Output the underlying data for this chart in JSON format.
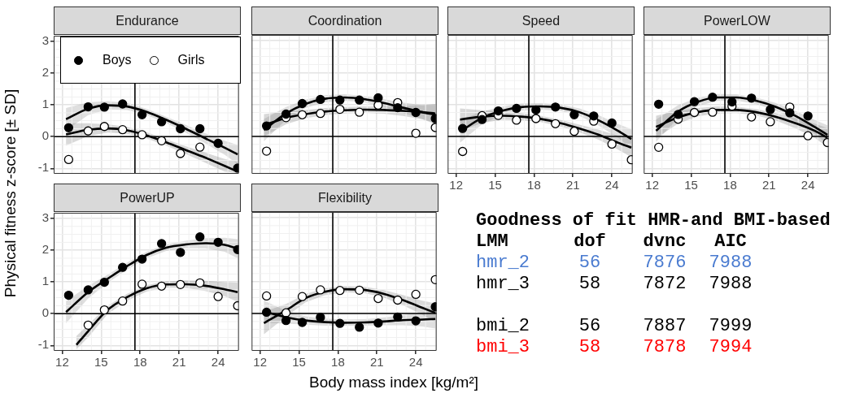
{
  "chart_data": [
    {
      "type": "scatter",
      "title": "Endurance",
      "ylabel": "Physical fitness z-score [± SD]",
      "legend": "top left",
      "tick_labels": "y",
      "grid": true,
      "marker": "circle",
      "x": [
        12.5,
        14,
        15.25,
        16.65,
        18.15,
        19.65,
        21.1,
        22.6,
        24,
        25.5
      ],
      "xlim": [
        11.35,
        25.6
      ],
      "ylim": [
        -1.17,
        3.18
      ],
      "xticks": [
        12,
        {
          "value": 13.5,
          "label": null
        },
        15,
        {
          "value": 16.5,
          "label": null
        },
        18,
        {
          "value": 19.5,
          "label": null
        },
        21,
        {
          "value": 22.5,
          "label": null
        },
        24,
        {
          "value": 25.5,
          "label": null
        }
      ],
      "yticks": [
        -1,
        {
          "value": -0.5,
          "label": null
        },
        0,
        {
          "value": 0.5,
          "label": null
        },
        1,
        {
          "value": 1.5,
          "label": null
        },
        2,
        {
          "value": 2.5,
          "label": null
        },
        3
      ],
      "ref_lines": [
        {
          "axis": "x",
          "value": 17.6,
          "color": "#000000"
        },
        {
          "axis": "y",
          "value": 0,
          "color": "#000000"
        }
      ],
      "series": [
        {
          "name": "Boys",
          "color": "#000000",
          "values": [
            0.28,
            0.94,
            0.93,
            1.03,
            0.69,
            0.47,
            0.25,
            0.25,
            -0.21,
            -0.99
          ]
        },
        {
          "name": "Girls",
          "color": "#ffffff",
          "values": [
            -0.72,
            0.18,
            0.32,
            0.22,
            0.06,
            -0.13,
            -0.53,
            -0.33,
            null,
            null
          ]
        },
        {
          "type": "line",
          "color": "#000000",
          "marker": "none",
          "x": [
            12.3,
            14,
            15.5,
            17,
            18.5,
            20,
            21.5,
            23,
            24.5,
            25.5
          ],
          "values": [
            0.55,
            0.88,
            0.99,
            0.95,
            0.78,
            0.53,
            0.25,
            -0.05,
            -0.35,
            -0.56
          ],
          "lower": [
            0.2,
            0.68,
            0.86,
            0.84,
            0.68,
            0.43,
            0.13,
            -0.21,
            -0.57,
            -0.86
          ],
          "upper": [
            0.9,
            1.08,
            1.12,
            1.06,
            0.88,
            0.63,
            0.37,
            0.11,
            -0.13,
            -0.26
          ]
        },
        {
          "type": "line",
          "color": "#000000",
          "marker": "none",
          "x": [
            12.3,
            14,
            15.5,
            17,
            18.5,
            20,
            21.5,
            23,
            24.5,
            25.5
          ],
          "values": [
            0.07,
            0.22,
            0.26,
            0.2,
            0.04,
            -0.18,
            -0.42,
            -0.66,
            -0.92,
            -1.1
          ],
          "lower": [
            -0.28,
            0.02,
            0.13,
            0.09,
            -0.06,
            -0.28,
            -0.54,
            -0.82,
            -1.1,
            -1.15
          ],
          "upper": [
            0.42,
            0.42,
            0.39,
            0.31,
            0.14,
            -0.08,
            -0.3,
            -0.5,
            -0.7,
            -0.8
          ]
        }
      ]
    },
    {
      "type": "scatter",
      "title": "Coordination",
      "tick_labels": false,
      "grid": true,
      "marker": "circle",
      "x": [
        12.5,
        14,
        15.25,
        16.65,
        18.15,
        19.65,
        21.1,
        22.6,
        24,
        25.5
      ],
      "xlim": [
        11.35,
        25.6
      ],
      "ylim": [
        -1.17,
        3.18
      ],
      "xticks": [
        12,
        {
          "value": 13.5,
          "label": null
        },
        15,
        {
          "value": 16.5,
          "label": null
        },
        18,
        {
          "value": 19.5,
          "label": null
        },
        21,
        {
          "value": 22.5,
          "label": null
        },
        24,
        {
          "value": 25.5,
          "label": null
        }
      ],
      "yticks": [
        -1,
        {
          "value": -0.5,
          "label": null
        },
        0,
        {
          "value": 0.5,
          "label": null
        },
        1,
        {
          "value": 1.5,
          "label": null
        },
        2,
        {
          "value": 2.5,
          "label": null
        },
        3
      ],
      "ref_lines": [
        {
          "axis": "x",
          "value": 17.6,
          "color": "#000000"
        },
        {
          "axis": "y",
          "value": 0,
          "color": "#000000"
        }
      ],
      "series": [
        {
          "color": "#000000",
          "values": [
            0.33,
            0.7,
            1.03,
            1.16,
            1.14,
            1.14,
            1.21,
            0.9,
            0.75,
            0.56
          ]
        },
        {
          "color": "#ffffff",
          "values": [
            -0.46,
            0.59,
            0.68,
            0.72,
            0.85,
            0.76,
            0.98,
            1.06,
            0.1,
            0.28
          ]
        },
        {
          "type": "line",
          "color": "#000000",
          "marker": "none",
          "x": [
            12.3,
            14,
            15.5,
            17,
            18.5,
            20,
            21.5,
            23,
            24.5,
            25.5
          ],
          "values": [
            0.2,
            0.72,
            1.02,
            1.18,
            1.22,
            1.17,
            1.05,
            0.9,
            0.76,
            0.68
          ],
          "lower": [
            -0.15,
            0.52,
            0.89,
            1.07,
            1.12,
            1.07,
            0.93,
            0.74,
            0.54,
            0.38
          ],
          "upper": [
            0.55,
            0.92,
            1.15,
            1.29,
            1.32,
            1.27,
            1.17,
            1.06,
            0.98,
            0.98
          ]
        },
        {
          "type": "line",
          "color": "#000000",
          "marker": "none",
          "x": [
            12.3,
            14,
            15.5,
            17,
            18.5,
            20,
            21.5,
            23,
            24.5,
            25.5
          ],
          "values": [
            0.35,
            0.58,
            0.7,
            0.78,
            0.82,
            0.84,
            0.83,
            0.8,
            0.76,
            0.72
          ],
          "lower": [
            0,
            0.38,
            0.57,
            0.67,
            0.72,
            0.74,
            0.71,
            0.64,
            0.54,
            0.42
          ],
          "upper": [
            0.7,
            0.78,
            0.83,
            0.89,
            0.92,
            0.94,
            0.95,
            0.96,
            0.98,
            1.02
          ]
        }
      ]
    },
    {
      "type": "scatter",
      "title": "Speed",
      "tick_labels": "x",
      "grid": true,
      "marker": "circle",
      "x": [
        12.5,
        14,
        15.25,
        16.65,
        18.15,
        19.65,
        21.1,
        22.6,
        24,
        25.5
      ],
      "xlim": [
        11.35,
        25.6
      ],
      "ylim": [
        -1.17,
        3.18
      ],
      "xticks": [
        12,
        {
          "value": 13.5,
          "label": null
        },
        15,
        {
          "value": 16.5,
          "label": null
        },
        18,
        {
          "value": 19.5,
          "label": null
        },
        21,
        {
          "value": 22.5,
          "label": null
        },
        24,
        {
          "value": 25.5,
          "label": null
        }
      ],
      "yticks": [
        -1,
        {
          "value": -0.5,
          "label": null
        },
        0,
        {
          "value": 0.5,
          "label": null
        },
        1,
        {
          "value": 1.5,
          "label": null
        },
        2,
        {
          "value": 2.5,
          "label": null
        },
        3
      ],
      "ref_lines": [
        {
          "axis": "x",
          "value": 17.6,
          "color": "#000000"
        },
        {
          "axis": "y",
          "value": 0,
          "color": "#000000"
        }
      ],
      "series": [
        {
          "color": "#000000",
          "values": [
            0.25,
            0.53,
            0.8,
            0.88,
            0.83,
            0.92,
            0.68,
            0.64,
            0.42,
            null
          ]
        },
        {
          "color": "#ffffff",
          "values": [
            -0.47,
            0.65,
            0.66,
            0.51,
            0.56,
            0.4,
            0.16,
            0.48,
            -0.24,
            -0.73
          ]
        },
        {
          "type": "line",
          "color": "#000000",
          "marker": "none",
          "x": [
            12.3,
            14,
            15.5,
            17,
            18.5,
            20,
            21.5,
            23,
            24.5,
            25.5
          ],
          "values": [
            0.15,
            0.58,
            0.8,
            0.92,
            0.94,
            0.9,
            0.76,
            0.5,
            0.17,
            -0.08
          ],
          "lower": [
            -0.2,
            0.38,
            0.67,
            0.81,
            0.84,
            0.8,
            0.64,
            0.34,
            -0.05,
            -0.38
          ],
          "upper": [
            0.5,
            0.78,
            0.93,
            1.03,
            1.04,
            1,
            0.88,
            0.66,
            0.39,
            0.22
          ]
        },
        {
          "type": "line",
          "color": "#000000",
          "marker": "none",
          "x": [
            12.3,
            14,
            15.5,
            17,
            18.5,
            20,
            21.5,
            23,
            24.5,
            25.5
          ],
          "values": [
            0.53,
            0.62,
            0.65,
            0.62,
            0.55,
            0.42,
            0.25,
            0.05,
            -0.2,
            -0.35
          ],
          "lower": [
            0.18,
            0.42,
            0.52,
            0.51,
            0.45,
            0.32,
            0.13,
            -0.11,
            -0.42,
            -0.65
          ],
          "upper": [
            0.88,
            0.82,
            0.78,
            0.73,
            0.65,
            0.52,
            0.37,
            0.21,
            0.02,
            -0.05
          ]
        }
      ]
    },
    {
      "type": "scatter",
      "title": "PowerLOW",
      "tick_labels": "x",
      "grid": true,
      "marker": "circle",
      "x": [
        12.5,
        14,
        15.25,
        16.65,
        18.15,
        19.65,
        21.1,
        22.6,
        24,
        25.5
      ],
      "xlim": [
        11.35,
        25.6
      ],
      "ylim": [
        -1.17,
        3.18
      ],
      "xticks": [
        12,
        {
          "value": 13.5,
          "label": null
        },
        15,
        {
          "value": 16.5,
          "label": null
        },
        18,
        {
          "value": 19.5,
          "label": null
        },
        21,
        {
          "value": 22.5,
          "label": null
        },
        24,
        {
          "value": 25.5,
          "label": null
        }
      ],
      "yticks": [
        -1,
        {
          "value": -0.5,
          "label": null
        },
        0,
        {
          "value": 0.5,
          "label": null
        },
        1,
        {
          "value": 1.5,
          "label": null
        },
        2,
        {
          "value": 2.5,
          "label": null
        },
        3
      ],
      "ref_lines": [
        {
          "axis": "x",
          "value": 17.6,
          "color": "#000000"
        },
        {
          "axis": "y",
          "value": 0,
          "color": "#000000"
        }
      ],
      "series": [
        {
          "color": "#000000",
          "values": [
            1.01,
            0.69,
            1.09,
            1.23,
            1.08,
            1.2,
            0.84,
            0.74,
            0.64,
            null
          ]
        },
        {
          "color": "#ffffff",
          "values": [
            -0.34,
            0.54,
            0.75,
            0.76,
            0.95,
            0.61,
            0.46,
            0.92,
            0.02,
            -0.19
          ]
        },
        {
          "type": "line",
          "color": "#000000",
          "marker": "none",
          "x": [
            12.3,
            14,
            15.5,
            17,
            18.5,
            20,
            21.5,
            23,
            24.5,
            25.5
          ],
          "values": [
            0.18,
            0.78,
            1.08,
            1.22,
            1.22,
            1.12,
            0.93,
            0.65,
            0.3,
            0.05
          ],
          "lower": [
            -0.17,
            0.58,
            0.95,
            1.11,
            1.12,
            1.02,
            0.81,
            0.49,
            0.08,
            -0.25
          ],
          "upper": [
            0.53,
            0.98,
            1.21,
            1.33,
            1.32,
            1.22,
            1.05,
            0.81,
            0.52,
            0.35
          ]
        },
        {
          "type": "line",
          "color": "#000000",
          "marker": "none",
          "x": [
            12.3,
            14,
            15.5,
            17,
            18.5,
            20,
            21.5,
            23,
            24.5,
            25.5
          ],
          "values": [
            0.3,
            0.6,
            0.76,
            0.83,
            0.83,
            0.76,
            0.62,
            0.42,
            0.18,
            -0.04
          ],
          "lower": [
            -0.05,
            0.4,
            0.63,
            0.72,
            0.73,
            0.66,
            0.5,
            0.26,
            -0.04,
            -0.34
          ],
          "upper": [
            0.65,
            0.8,
            0.89,
            0.94,
            0.93,
            0.86,
            0.74,
            0.58,
            0.4,
            0.26
          ]
        }
      ]
    },
    {
      "type": "scatter",
      "title": "PowerUP",
      "grid": true,
      "marker": "circle",
      "x": [
        12.5,
        14,
        15.25,
        16.65,
        18.15,
        19.65,
        21.1,
        22.6,
        24,
        25.5
      ],
      "xlim": [
        11.35,
        25.6
      ],
      "ylim": [
        -1.17,
        3.18
      ],
      "xticks": [
        12,
        {
          "value": 13.5,
          "label": null
        },
        15,
        {
          "value": 16.5,
          "label": null
        },
        18,
        {
          "value": 19.5,
          "label": null
        },
        21,
        {
          "value": 22.5,
          "label": null
        },
        24,
        {
          "value": 25.5,
          "label": null
        }
      ],
      "yticks": [
        -1,
        {
          "value": -0.5,
          "label": null
        },
        0,
        {
          "value": 0.5,
          "label": null
        },
        1,
        {
          "value": 1.5,
          "label": null
        },
        2,
        {
          "value": 2.5,
          "label": null
        },
        3
      ],
      "ref_lines": [
        {
          "axis": "x",
          "value": 17.6,
          "color": "#000000"
        },
        {
          "axis": "y",
          "value": 0,
          "color": "#000000"
        }
      ],
      "series": [
        {
          "color": "#000000",
          "values": [
            0.58,
            0.75,
            0.99,
            1.46,
            1.72,
            2.21,
            1.93,
            2.42,
            2.25,
            2.02
          ]
        },
        {
          "color": "#ffffff",
          "values": [
            null,
            -0.36,
            0.12,
            0.4,
            0.93,
            0.87,
            0.92,
            0.97,
            0.54,
            0.25
          ]
        },
        {
          "type": "line",
          "color": "#000000",
          "marker": "none",
          "x": [
            12.3,
            14,
            15.5,
            17,
            18.5,
            20,
            21.5,
            23,
            24.5,
            25.5
          ],
          "values": [
            0.05,
            0.68,
            1.1,
            1.5,
            1.85,
            2.08,
            2.18,
            2.22,
            2.17,
            2.05
          ],
          "lower": [
            -0.3,
            0.48,
            0.97,
            1.39,
            1.75,
            1.98,
            2.06,
            2.06,
            1.95,
            1.75
          ],
          "upper": [
            0.4,
            0.88,
            1.23,
            1.61,
            1.95,
            2.18,
            2.3,
            2.38,
            2.39,
            2.35
          ]
        },
        {
          "type": "line",
          "color": "#000000",
          "marker": "none",
          "x": [
            13.1,
            14,
            15.5,
            17,
            18.5,
            20,
            21.5,
            23,
            24.5,
            25.5
          ],
          "values": [
            -0.98,
            -0.55,
            0.12,
            0.52,
            0.8,
            0.92,
            0.93,
            0.88,
            0.77,
            0.68
          ],
          "lower": [
            -1.12,
            -0.75,
            -0.01,
            0.41,
            0.7,
            0.82,
            0.81,
            0.72,
            0.55,
            0.38
          ],
          "upper": [
            -0.7,
            -0.35,
            0.25,
            0.63,
            0.9,
            1.02,
            1.05,
            1.04,
            0.99,
            0.98
          ]
        }
      ]
    },
    {
      "type": "scatter",
      "title": "Flexibility",
      "xlabel": "Body mass index [kg/m²]",
      "tick_labels": "x",
      "grid": true,
      "marker": "circle",
      "x": [
        12.5,
        14,
        15.25,
        16.65,
        18.15,
        19.65,
        21.1,
        22.6,
        24,
        25.5
      ],
      "xlim": [
        11.35,
        25.6
      ],
      "ylim": [
        -1.17,
        3.18
      ],
      "xticks": [
        12,
        {
          "value": 13.5,
          "label": null
        },
        15,
        {
          "value": 16.5,
          "label": null
        },
        18,
        {
          "value": 19.5,
          "label": null
        },
        21,
        {
          "value": 22.5,
          "label": null
        },
        24,
        {
          "value": 25.5,
          "label": null
        }
      ],
      "yticks": [
        -1,
        {
          "value": -0.5,
          "label": null
        },
        0,
        {
          "value": 0.5,
          "label": null
        },
        1,
        {
          "value": 1.5,
          "label": null
        },
        2,
        {
          "value": 2.5,
          "label": null
        },
        3
      ],
      "ref_lines": [
        {
          "axis": "x",
          "value": 17.6,
          "color": "#000000"
        },
        {
          "axis": "y",
          "value": 0,
          "color": "#000000"
        }
      ],
      "series": [
        {
          "color": "#000000",
          "values": [
            0.04,
            -0.22,
            -0.28,
            -0.12,
            -0.31,
            -0.43,
            -0.3,
            -0.11,
            -0.23,
            0.21
          ]
        },
        {
          "color": "#ffffff",
          "values": [
            0.55,
            0.02,
            0.53,
            0.74,
            0.72,
            0.73,
            0.47,
            0.42,
            0.6,
            1.06
          ]
        },
        {
          "type": "line",
          "color": "#000000",
          "marker": "none",
          "x": [
            12.3,
            14,
            15.5,
            17,
            18.5,
            20,
            21.5,
            23,
            24.5,
            25.5
          ],
          "values": [
            0.06,
            -0.12,
            -0.22,
            -0.27,
            -0.29,
            -0.28,
            -0.25,
            -0.21,
            -0.19,
            -0.17
          ],
          "lower": [
            -0.29,
            -0.32,
            -0.35,
            -0.38,
            -0.39,
            -0.38,
            -0.37,
            -0.37,
            -0.41,
            -0.47
          ],
          "upper": [
            0.41,
            0.08,
            -0.09,
            -0.16,
            -0.19,
            -0.18,
            -0.13,
            -0.05,
            0.03,
            0.13
          ]
        },
        {
          "type": "line",
          "color": "#000000",
          "marker": "none",
          "x": [
            12.3,
            14,
            15.5,
            17,
            18.5,
            20,
            21.5,
            23,
            24.5,
            25.5
          ],
          "values": [
            -0.3,
            0.1,
            0.48,
            0.68,
            0.76,
            0.74,
            0.62,
            0.42,
            0.18,
            0.02
          ],
          "lower": [
            -0.65,
            -0.1,
            0.35,
            0.57,
            0.66,
            0.64,
            0.5,
            0.26,
            -0.04,
            -0.28
          ],
          "upper": [
            0.05,
            0.3,
            0.61,
            0.79,
            0.86,
            0.84,
            0.74,
            0.58,
            0.4,
            0.32
          ]
        }
      ]
    },
    {
      "type": "other",
      "title": "Goodness of fit HMR-and BMI-based",
      "categories": [
        "LMM",
        "dof",
        "dvnc",
        "AIC"
      ],
      "y_categories": [
        "hmr_2",
        "hmr_3",
        null,
        "bmi_2",
        "bmi_3"
      ],
      "cell_labels": [
        [
          "56",
          "7876",
          "7988"
        ],
        [
          "58",
          "7872",
          "7988"
        ],
        [
          null,
          null,
          null
        ],
        [
          "56",
          "7887",
          "7999"
        ],
        [
          "58",
          "7878",
          "7994"
        ]
      ],
      "colors": [
        "#4a7bd0",
        "#000000",
        null,
        "#000000",
        "#ff0000"
      ]
    }
  ]
}
